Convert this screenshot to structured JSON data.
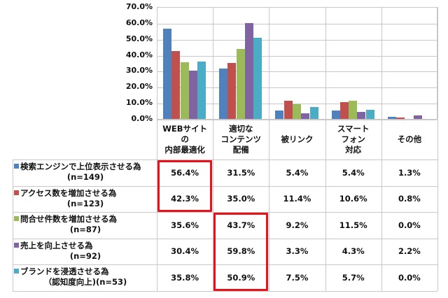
{
  "chart_data": {
    "type": "bar",
    "title": "",
    "xlabel": "",
    "ylabel": "",
    "ylim": [
      0,
      70
    ],
    "yticks": [
      "70.0%",
      "60.0%",
      "50.0%",
      "40.0%",
      "30.0%",
      "20.0%",
      "10.0%",
      "0.0%"
    ],
    "grid": true,
    "legend_position": "table-left",
    "categories": [
      [
        "WEBサイト",
        "の",
        "内部最適化"
      ],
      [
        "適切な",
        "コンテンツ",
        "配備"
      ],
      [
        "被リンク"
      ],
      [
        "スマート",
        "フォン",
        "対応"
      ],
      [
        "その他"
      ]
    ],
    "series": [
      {
        "name": "検索エンジンで上位表示させる為",
        "n": "(n=149)",
        "color": "#4f81bd",
        "values": [
          56.4,
          31.5,
          5.4,
          5.4,
          1.3
        ],
        "labels": [
          "56.4%",
          "31.5%",
          "5.4%",
          "5.4%",
          "1.3%"
        ]
      },
      {
        "name": "アクセス数を増加させる為",
        "n": "(n=123)",
        "color": "#c0504d",
        "values": [
          42.3,
          35.0,
          11.4,
          10.6,
          0.8
        ],
        "labels": [
          "42.3%",
          "35.0%",
          "11.4%",
          "10.6%",
          "0.8%"
        ]
      },
      {
        "name": "問合せ件数を増加させる為",
        "n": "(n=87)",
        "color": "#9bbb59",
        "values": [
          35.6,
          43.7,
          9.2,
          11.5,
          0.0
        ],
        "labels": [
          "35.6%",
          "43.7%",
          "9.2%",
          "11.5%",
          "0.0%"
        ]
      },
      {
        "name": "売上を向上させる為",
        "n": "(n=92)",
        "color": "#8064a2",
        "values": [
          30.4,
          59.8,
          3.3,
          4.3,
          2.2
        ],
        "labels": [
          "30.4%",
          "59.8%",
          "3.3%",
          "4.3%",
          "2.2%"
        ]
      },
      {
        "name": "ブランドを浸透させる為",
        "n": "（認知度向上)(n=53)",
        "color": "#4bacc6",
        "values": [
          35.8,
          50.9,
          7.5,
          5.7,
          0.0
        ],
        "labels": [
          "35.8%",
          "50.9%",
          "7.5%",
          "5.7%",
          "0.0%"
        ]
      }
    ],
    "highlights": [
      {
        "category_index": 0,
        "series_range": [
          0,
          1
        ],
        "color": "#e8121a"
      },
      {
        "category_index": 1,
        "series_range": [
          2,
          4
        ],
        "color": "#e8121a"
      }
    ]
  }
}
